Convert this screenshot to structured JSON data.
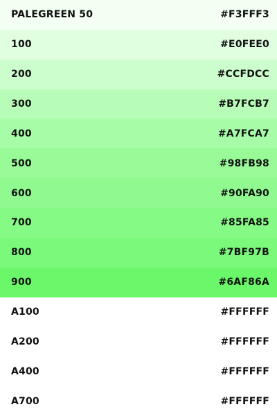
{
  "palette": {
    "name": "PALEGREEN",
    "swatches": [
      {
        "label": "PALEGREEN 50",
        "hex": "#F3FFF3",
        "color": "#F3FFF3"
      },
      {
        "label": "100",
        "hex": "#E0FEE0",
        "color": "#E0FEE0"
      },
      {
        "label": "200",
        "hex": "#CCFDCC",
        "color": "#CCFDCC"
      },
      {
        "label": "300",
        "hex": "#B7FCB7",
        "color": "#B7FCB7"
      },
      {
        "label": "400",
        "hex": "#A7FCA7",
        "color": "#A7FCA7"
      },
      {
        "label": "500",
        "hex": "#98FB98",
        "color": "#98FB98"
      },
      {
        "label": "600",
        "hex": "#90FA90",
        "color": "#90FA90"
      },
      {
        "label": "700",
        "hex": "#85FA85",
        "color": "#85FA85"
      },
      {
        "label": "800",
        "hex": "#7BF97B",
        "color": "#7BF97B"
      },
      {
        "label": "900",
        "hex": "#6AF86A",
        "color": "#6AF86A"
      },
      {
        "label": "A100",
        "hex": "#FFFFFF",
        "color": "#FFFFFF"
      },
      {
        "label": "A200",
        "hex": "#FFFFFF",
        "color": "#FFFFFF"
      },
      {
        "label": "A400",
        "hex": "#FFFFFF",
        "color": "#FFFFFF"
      },
      {
        "label": "A700",
        "hex": "#FFFFFF",
        "color": "#FFFFFF"
      }
    ]
  }
}
